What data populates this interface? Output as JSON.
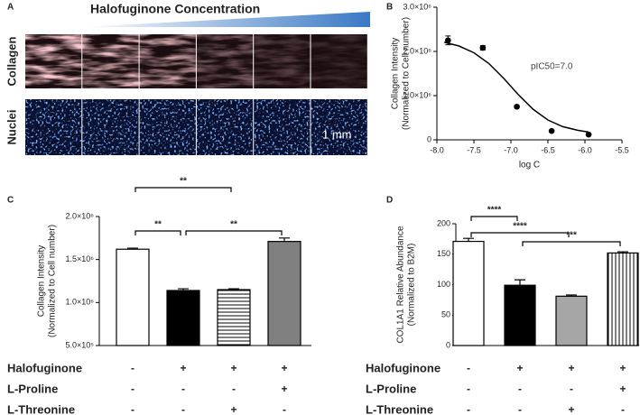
{
  "panel_a": {
    "label": "A",
    "title": "Halofuginone Concentration",
    "row_labels": [
      "Collagen",
      "Nuclei"
    ],
    "scale_bar": "1 mm"
  },
  "chart_data": [
    {
      "type": "scatter",
      "label": "B",
      "ylabel": [
        "Collagen Intensity",
        "(Normalized to Cell number)"
      ],
      "xlabel": "log C",
      "annotation": "pIC50=7.0",
      "x": [
        -7.85,
        -7.38,
        -6.92,
        -6.45,
        -5.95
      ],
      "values": [
        2250000,
        2080000,
        750000,
        200000,
        120000
      ],
      "errors": [
        100000,
        50000,
        30000,
        20000,
        10000
      ],
      "fit": {
        "x": [
          -7.9,
          -7.7,
          -7.5,
          -7.3,
          -7.1,
          -6.9,
          -6.7,
          -6.5,
          -6.3,
          -6.1,
          -5.95
        ],
        "values": [
          2207000,
          2122000,
          1970000,
          1729000,
          1396000,
          1023000,
          691000,
          449000,
          298000,
          217000,
          177000
        ]
      },
      "color": "#000000",
      "xlim": [
        -8.0,
        -5.5
      ],
      "xticks": [
        {
          "value": -8.0,
          "label": "-8.0"
        },
        -7.5,
        {
          "value": -7.0,
          "label": "-7.0"
        },
        -6.5,
        {
          "value": -6.0,
          "label": "-6.0"
        },
        -5.5
      ],
      "ylim": [
        0,
        3000000
      ],
      "yticks": [
        0,
        {
          "value": 1000000,
          "label": "1.0×10⁶"
        },
        {
          "value": 2000000,
          "label": "2.0×10⁶"
        },
        {
          "value": 3000000,
          "label": "3.0×10⁶"
        }
      ]
    },
    {
      "type": "bar",
      "label": "C",
      "ylabel": [
        "Collagen Intensity",
        "(Normalized to Cell number)"
      ],
      "values": [
        1620000,
        1140000,
        1150000,
        1710000
      ],
      "errors": [
        12000,
        20000,
        10000,
        40000
      ],
      "colors": [
        "#ffffff",
        "#000000",
        "#ffffff",
        "#808080"
      ],
      "hatch": [
        null,
        null,
        "horizontal",
        null
      ],
      "ylim": [
        500000,
        2000000
      ],
      "yticks": [
        {
          "value": 500000,
          "label": "5.0×10⁵"
        },
        {
          "value": 1000000,
          "label": "1.0×10⁶"
        },
        {
          "value": 1500000,
          "label": "1.5×10⁶"
        },
        {
          "value": 2000000,
          "label": "2.0×10⁶"
        }
      ],
      "significance": [
        {
          "from": 0,
          "to": 2,
          "label": "**"
        },
        {
          "from": 0,
          "to": 1,
          "label": "**"
        },
        {
          "from": 1,
          "to": 3,
          "label": "**"
        }
      ],
      "conditions": [
        {
          "name": "Halofuginone",
          "values": [
            "-",
            "+",
            "+",
            "+"
          ]
        },
        {
          "name": "L-Proline",
          "values": [
            "-",
            "-",
            "-",
            "+"
          ]
        },
        {
          "name": "L-Threonine",
          "values": [
            "-",
            "-",
            "+",
            "-"
          ]
        }
      ]
    },
    {
      "type": "bar",
      "label": "D",
      "ylabel": [
        "COL1A1 Relative Abundance",
        "(Normalized to B2M)"
      ],
      "values": [
        171,
        99,
        81,
        152
      ],
      "errors": [
        5,
        9,
        2,
        2
      ],
      "colors": [
        "#ffffff",
        "#000000",
        "#a6a6a6",
        "#ffffff"
      ],
      "hatch": [
        null,
        null,
        null,
        "vertical"
      ],
      "ylim": [
        0,
        200
      ],
      "yticks": [
        0,
        50,
        100,
        150,
        200
      ],
      "significance": [
        {
          "from": 0,
          "to": 1,
          "label": "****"
        },
        {
          "from": 0,
          "to": 2,
          "label": "****"
        },
        {
          "from": 1,
          "to": 3,
          "label": "***"
        }
      ],
      "conditions": [
        {
          "name": "Halofuginone",
          "values": [
            "-",
            "+",
            "+",
            "+"
          ]
        },
        {
          "name": "L-Proline",
          "values": [
            "-",
            "-",
            "-",
            "+"
          ]
        },
        {
          "name": "L-Threonine",
          "values": [
            "-",
            "-",
            "+",
            "-"
          ]
        }
      ]
    }
  ]
}
